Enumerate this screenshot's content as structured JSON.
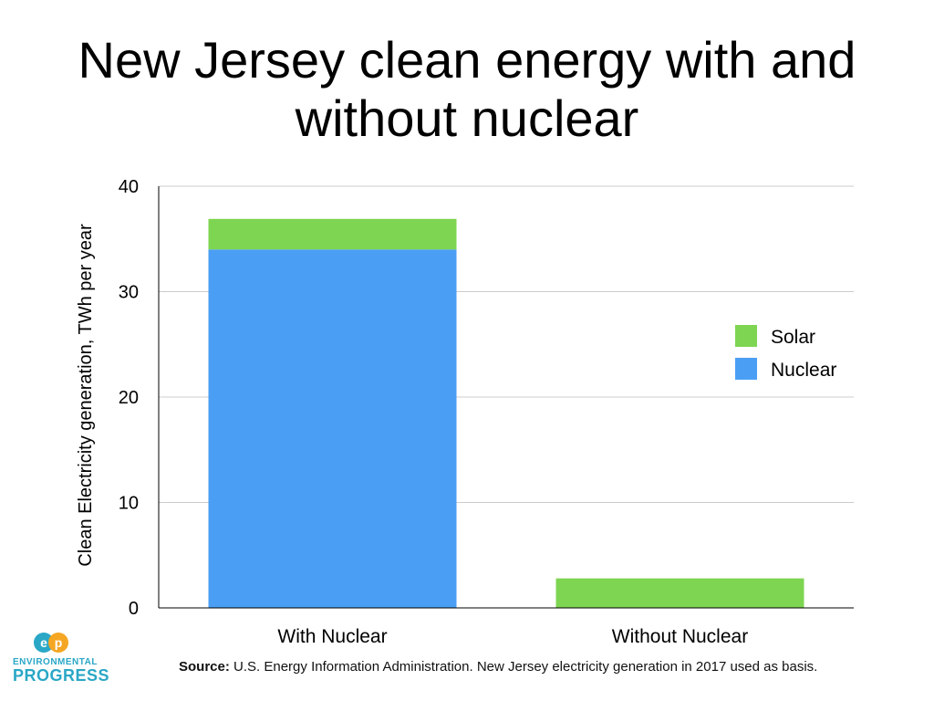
{
  "title": "New Jersey clean energy with and without nuclear",
  "source": {
    "label": "Source:",
    "text": "U.S. Energy Information Administration. New Jersey electricity generation in 2017 used as basis."
  },
  "logo": {
    "line1": "ENVIRONMENTAL",
    "line2": "PROGRESS"
  },
  "colors": {
    "nuclear": "#4a9ff5",
    "solar": "#7ed552",
    "grid": "#cccccc",
    "axis": "#000000",
    "logo": "#2aa7c6",
    "logo_orange": "#f5a623"
  },
  "chart_data": {
    "type": "bar",
    "stacked": true,
    "categories": [
      "With Nuclear",
      "Without Nuclear"
    ],
    "series": [
      {
        "name": "Nuclear",
        "values": [
          34,
          0
        ]
      },
      {
        "name": "Solar",
        "values": [
          2.9,
          2.8
        ]
      }
    ],
    "ylabel": "Clean Electricity generation, TWh per year",
    "xlabel": "",
    "ylim": [
      0,
      40
    ],
    "yticks": [
      0,
      10,
      20,
      30,
      40
    ],
    "legend": {
      "position": "right",
      "items": [
        "Solar",
        "Nuclear"
      ]
    },
    "grid": true
  }
}
